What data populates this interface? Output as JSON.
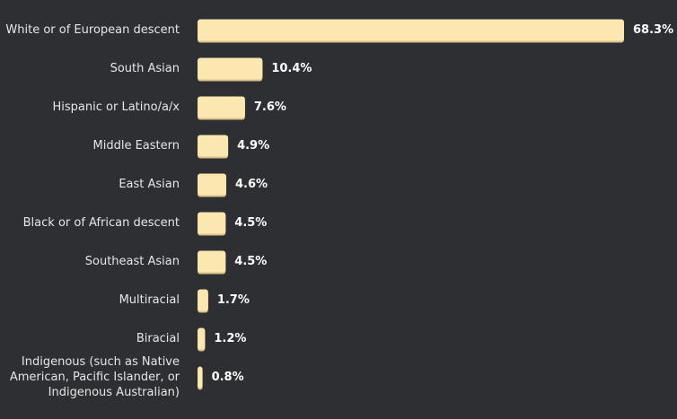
{
  "chart_data": {
    "type": "bar",
    "orientation": "horizontal",
    "categories": [
      "White or of European descent",
      "South Asian",
      "Hispanic or Latino/a/x",
      "Middle Eastern",
      "East Asian",
      "Black or of African descent",
      "Southeast Asian",
      "Multiracial",
      "Biracial",
      "Indigenous (such as Native American, Pacific Islander, or Indigenous Australian)"
    ],
    "category_lines": [
      [
        "White or of European descent"
      ],
      [
        "South Asian"
      ],
      [
        "Hispanic or Latino/a/x"
      ],
      [
        "Middle Eastern"
      ],
      [
        "East Asian"
      ],
      [
        "Black or of African descent"
      ],
      [
        "Southeast Asian"
      ],
      [
        "Multiracial"
      ],
      [
        "Biracial"
      ],
      [
        "Indigenous (such as Native",
        "American, Pacific Islander, or",
        "Indigenous Australian)"
      ]
    ],
    "values": [
      68.3,
      10.4,
      7.6,
      4.9,
      4.6,
      4.5,
      4.5,
      1.7,
      1.2,
      0.8
    ],
    "value_labels": [
      "68.3%",
      "10.4%",
      "7.6%",
      "4.9%",
      "4.6%",
      "4.5%",
      "4.5%",
      "1.7%",
      "1.2%",
      "0.8%"
    ],
    "xlim": [
      0,
      68.3
    ],
    "grid": false,
    "legend": "none",
    "title": "",
    "xlabel": "",
    "ylabel": ""
  },
  "colors": {
    "background": "#2d2f33",
    "bar": "#fde7b0",
    "bar_shadow": "#d9c08a",
    "category_text": "#e6e6e6",
    "value_text": "#ffffff"
  }
}
